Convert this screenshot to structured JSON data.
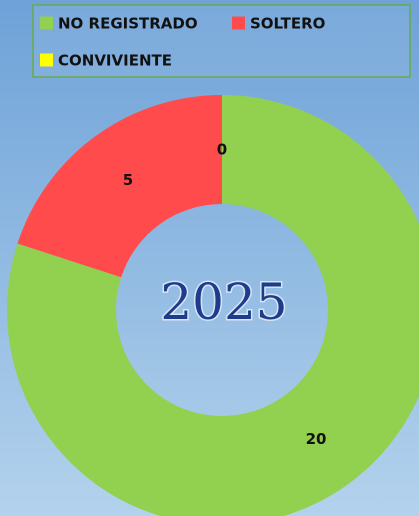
{
  "chart_data": {
    "type": "donut",
    "center_label": "2025",
    "categories": [
      "NO REGISTRADO",
      "SOLTERO",
      "CONVIVIENTE"
    ],
    "values": [
      20,
      5,
      0
    ],
    "colors": [
      "#92d050",
      "#ff4b4b",
      "#ffff00"
    ]
  }
}
